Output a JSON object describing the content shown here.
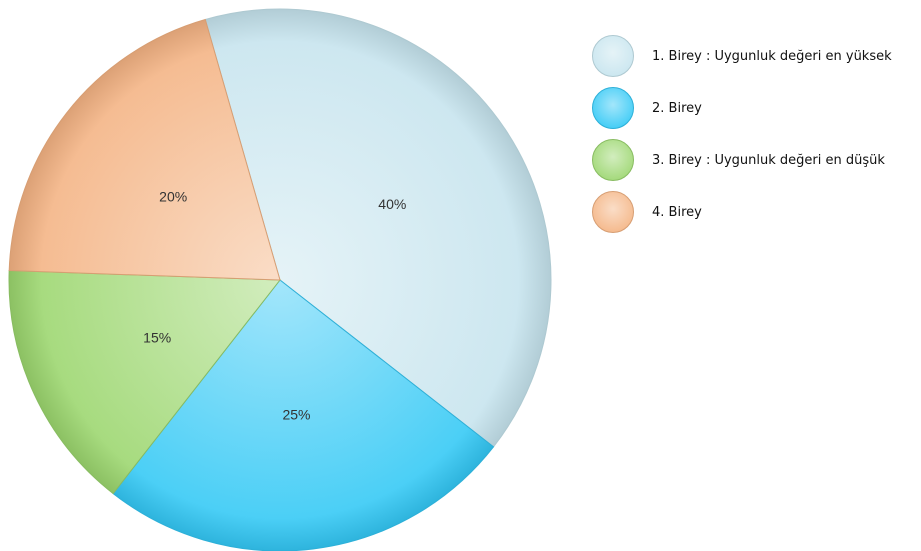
{
  "chart_data": {
    "type": "pie",
    "slices": [
      {
        "label": "1. Birey : Uygunluk değeri en yüksek",
        "value": 40,
        "value_label": "40%",
        "color": "#c6e4ee"
      },
      {
        "label": "2. Birey",
        "value": 25,
        "value_label": "25%",
        "color": "#33c8f5"
      },
      {
        "label": "3. Birey : Uygunluk değeri en düşük",
        "value": 15,
        "value_label": "15%",
        "color": "#9bd66e"
      },
      {
        "label": "4. Birey",
        "value": 20,
        "value_label": "20%",
        "color": "#f4b383"
      }
    ],
    "legend_position": "top-right"
  }
}
